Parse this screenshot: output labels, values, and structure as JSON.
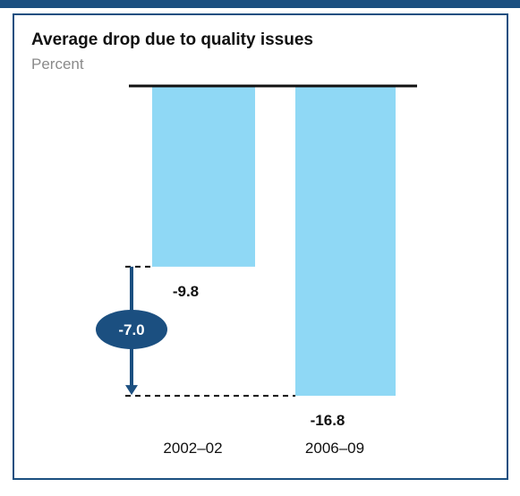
{
  "colors": {
    "frame": "#1b4f80",
    "bar": "#8fd8f5",
    "baseline": "#111111",
    "badge": "#1b4f80",
    "badge_text": "#ffffff"
  },
  "chart_data": {
    "type": "bar",
    "title": "Average drop due to quality issues",
    "subtitle": "Percent",
    "categories": [
      "2002–02",
      "2006–09"
    ],
    "values": [
      -9.8,
      -16.8
    ],
    "value_labels": [
      "-9.8",
      "-16.8"
    ],
    "ylim": [
      -20,
      0
    ],
    "grid": false,
    "legend": "none",
    "annotations": [
      {
        "type": "difference",
        "from": -9.8,
        "to": -16.8,
        "label": "-7.0"
      }
    ]
  }
}
